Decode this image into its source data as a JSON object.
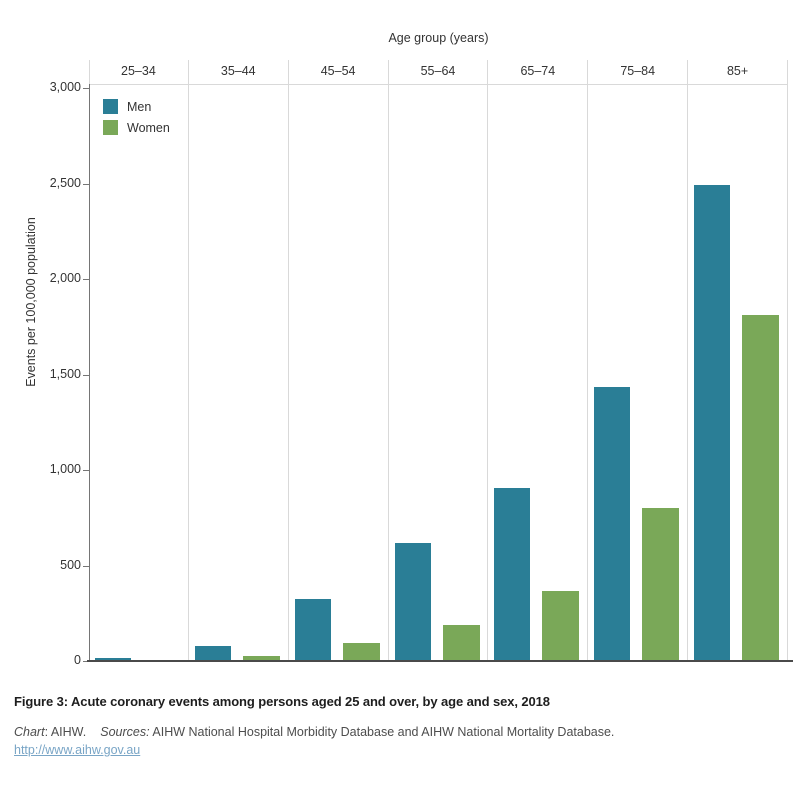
{
  "chart_data": {
    "type": "bar",
    "title": "",
    "xlabel": "Age group (years)",
    "ylabel": "Events per 100,000 population",
    "categories": [
      "25–34",
      "35–44",
      "45–54",
      "55–64",
      "65–74",
      "75–84",
      "85+"
    ],
    "series": [
      {
        "name": "Men",
        "color": "#2a7e96",
        "values": [
          15,
          80,
          325,
          620,
          905,
          1435,
          2490
        ]
      },
      {
        "name": "Women",
        "color": "#7aa858",
        "values": [
          5,
          25,
          95,
          190,
          365,
          800,
          1810
        ]
      }
    ],
    "ylim": [
      0,
      3000
    ],
    "y_tick_step": 500,
    "y_tick_labels": [
      "0",
      "500",
      "1,000",
      "1,500",
      "2,000",
      "2,500",
      "3,000"
    ],
    "grid": "vertical panel separators only, no horizontal gridlines",
    "legend_position": "top-left"
  },
  "caption": {
    "title": "Figure 3: Acute coronary events among persons aged 25 and over, by age and sex, 2018",
    "chart_label": "Chart",
    "chart_rest": ": AIHW.",
    "sources_label": "Sources:",
    "sources_rest": " AIHW National Hospital Morbidity Database and AIHW National Mortality Database.",
    "link": "http://www.aihw.gov.au"
  },
  "colors": {
    "men": "#2a7e96",
    "women": "#7aa858",
    "axis_line": "#757575",
    "baseline": "#4a4a4a",
    "panel_separator": "#d9d9d9",
    "label_text": "#333333",
    "link": "#79a5c6"
  }
}
